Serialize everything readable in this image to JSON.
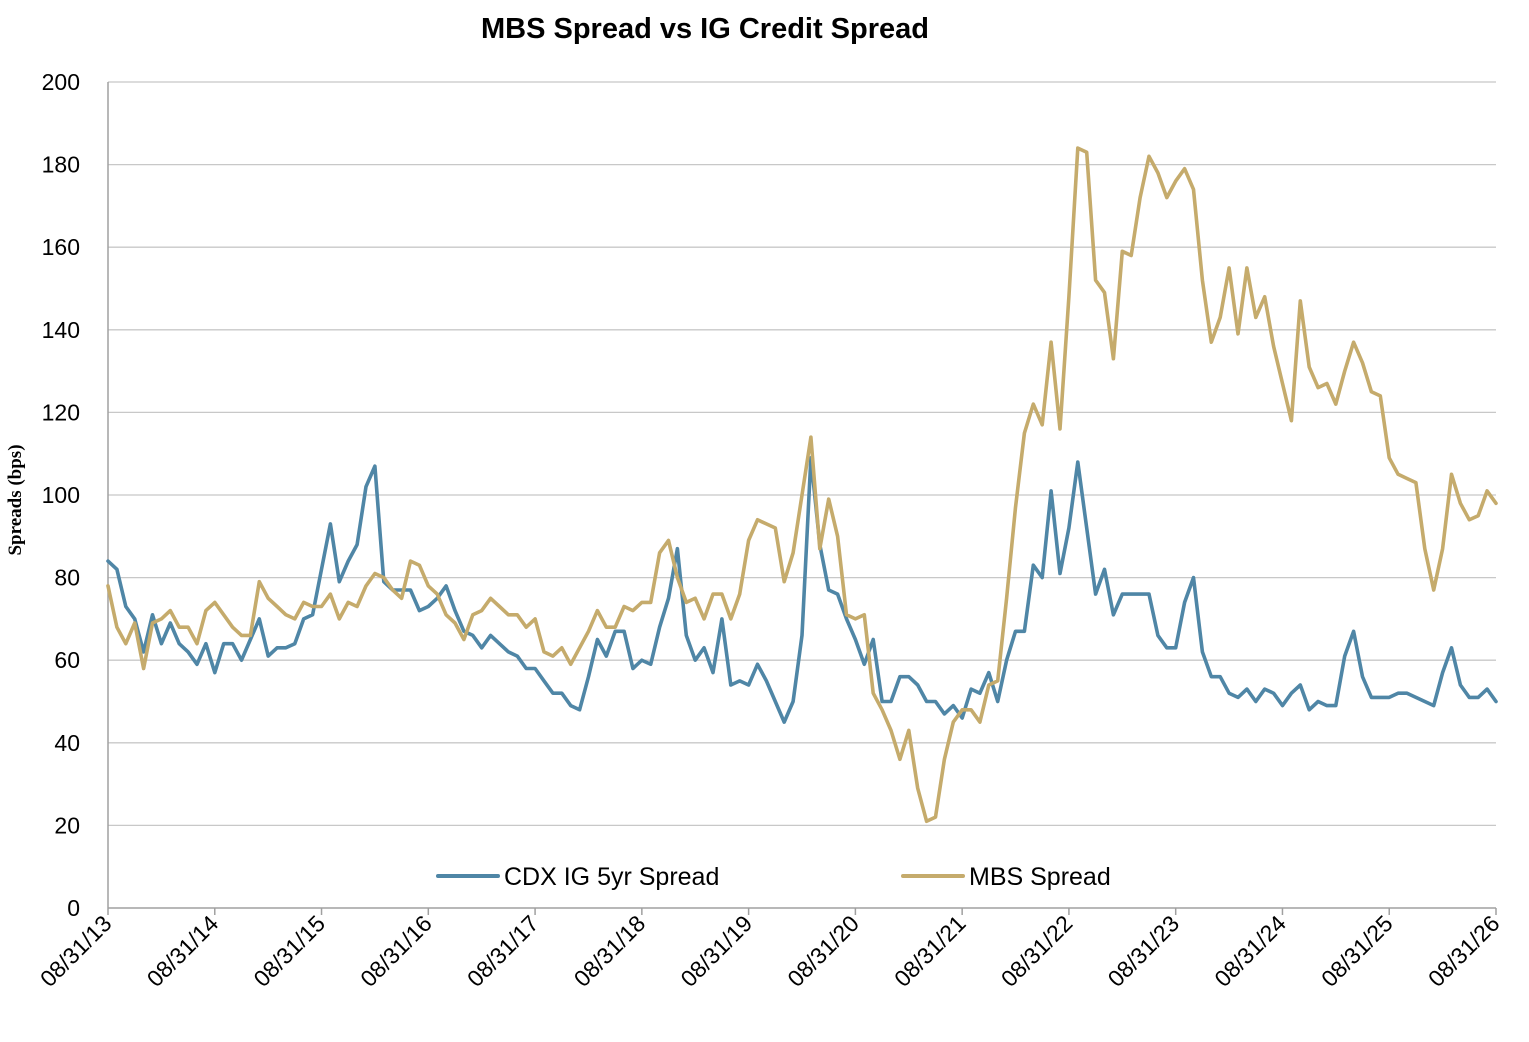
{
  "chart_data": {
    "type": "line",
    "title": "MBS Spread vs IG Credit Spread",
    "ylabel": "Spreads (bps)",
    "xlabel": "",
    "ylim": [
      0,
      200
    ],
    "yticks": [
      0,
      20,
      40,
      60,
      80,
      100,
      120,
      140,
      160,
      180,
      200
    ],
    "xlim": [
      "08/31/13",
      "08/31/26"
    ],
    "x_tick_labels": [
      "08/31/13",
      "08/31/14",
      "08/31/15",
      "08/31/16",
      "08/31/17",
      "08/31/18",
      "08/31/19",
      "08/31/20",
      "08/31/21",
      "08/31/22",
      "08/31/23",
      "08/31/24",
      "08/31/25",
      "08/31/26"
    ],
    "grid": "horizontal",
    "legend": "bottom-center",
    "series": [
      {
        "name": "CDX IG 5yr Spread",
        "color": "#4f86a6",
        "x_start": "08/31/13",
        "x_end": "08/31/26",
        "values": [
          84,
          82,
          73,
          70,
          62,
          71,
          64,
          69,
          64,
          62,
          59,
          64,
          57,
          64,
          64,
          60,
          65,
          70,
          61,
          63,
          63,
          64,
          70,
          71,
          82,
          93,
          79,
          84,
          88,
          102,
          107,
          79,
          77,
          77,
          77,
          72,
          73,
          75,
          78,
          72,
          67,
          66,
          63,
          66,
          64,
          62,
          61,
          58,
          58,
          55,
          52,
          52,
          49,
          48,
          56,
          65,
          61,
          67,
          67,
          58,
          60,
          59,
          68,
          75,
          87,
          66,
          60,
          63,
          57,
          70,
          54,
          55,
          54,
          59,
          55,
          50,
          45,
          50,
          66,
          109,
          88,
          77,
          76,
          70,
          65,
          59,
          65,
          50,
          50,
          56,
          56,
          54,
          50,
          50,
          47,
          49,
          46,
          53,
          52,
          57,
          50,
          60,
          67,
          67,
          83,
          80,
          101,
          81,
          92,
          108,
          92,
          76,
          82,
          71,
          76,
          76,
          76,
          76,
          66,
          63,
          63,
          74,
          80,
          62,
          56,
          56,
          52,
          51,
          53,
          50,
          53,
          52,
          49,
          52,
          54,
          48,
          50,
          49,
          49,
          61,
          67,
          56,
          51,
          51,
          51,
          52,
          52,
          51,
          50,
          49,
          57,
          63,
          54,
          51,
          51,
          53,
          50
        ]
      },
      {
        "name": "MBS Spread",
        "color": "#c5ab6c",
        "x_start": "08/31/13",
        "x_end": "08/31/26",
        "values": [
          78,
          68,
          64,
          69,
          58,
          69,
          70,
          72,
          68,
          68,
          64,
          72,
          74,
          71,
          68,
          66,
          66,
          79,
          75,
          73,
          71,
          70,
          74,
          73,
          73,
          76,
          70,
          74,
          73,
          78,
          81,
          80,
          77,
          75,
          84,
          83,
          78,
          76,
          71,
          69,
          65,
          71,
          72,
          75,
          73,
          71,
          71,
          68,
          70,
          62,
          61,
          63,
          59,
          63,
          67,
          72,
          68,
          68,
          73,
          72,
          74,
          74,
          86,
          89,
          80,
          74,
          75,
          70,
          76,
          76,
          70,
          76,
          89,
          94,
          93,
          92,
          79,
          86,
          100,
          114,
          87,
          99,
          90,
          71,
          70,
          71,
          52,
          48,
          43,
          36,
          43,
          29,
          21,
          22,
          36,
          45,
          48,
          48,
          45,
          54,
          55,
          75,
          97,
          115,
          122,
          117,
          137,
          116,
          148,
          184,
          183,
          152,
          149,
          133,
          159,
          158,
          172,
          182,
          178,
          172,
          176,
          179,
          174,
          152,
          137,
          143,
          155,
          139,
          155,
          143,
          148,
          136,
          127,
          118,
          147,
          131,
          126,
          127,
          122,
          130,
          137,
          132,
          125,
          124,
          109,
          105,
          104,
          103,
          87,
          77,
          87,
          105,
          98,
          94,
          95,
          101,
          98
        ]
      }
    ]
  }
}
